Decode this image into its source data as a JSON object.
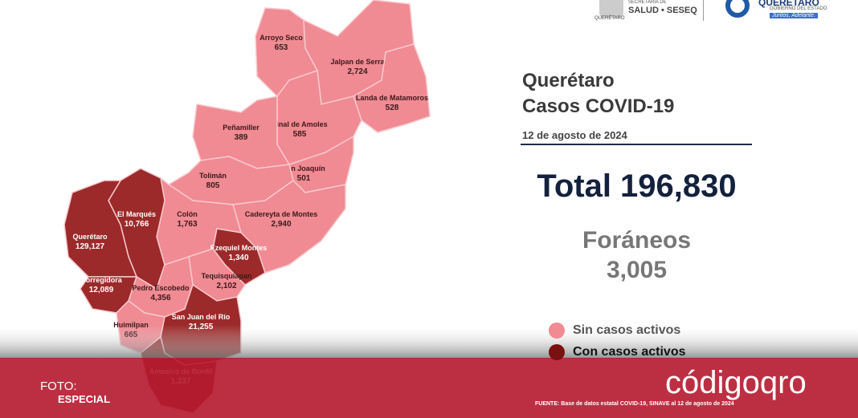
{
  "header": {
    "seal_caption": "QUERÉTARO",
    "agency_top": "SECRETARÍA DE",
    "agency": "SALUD • SESEQ",
    "state": "QUERÉTARO",
    "state_sub": "GOBIERNO DEL ESTADO",
    "slogan": "Juntos, Adelante."
  },
  "title": {
    "line1": "Querétaro",
    "line2": "Casos COVID-19",
    "date": "12 de agosto de 2024"
  },
  "total": "Total 196,830",
  "foreign": {
    "label": "Foráneos",
    "value": "3,005"
  },
  "legend": [
    {
      "label": "Sin casos activos",
      "color": "#f08a93"
    },
    {
      "label": "Con casos activos",
      "color": "#7a1010"
    }
  ],
  "municipalities": [
    {
      "name": "Arroyo Seco",
      "cases": "653",
      "color": "#f08a93"
    },
    {
      "name": "Jalpan de Serra",
      "cases": "2,724",
      "color": "#f08a93"
    },
    {
      "name": "Landa de Matamoros",
      "cases": "528",
      "color": "#f08a93"
    },
    {
      "name": "Pinal de Amoles",
      "cases": "585",
      "color": "#f08a93"
    },
    {
      "name": "Peñamiller",
      "cases": "389",
      "color": "#f08a93"
    },
    {
      "name": "San Joaquín",
      "cases": "501",
      "color": "#f08a93"
    },
    {
      "name": "Tolimán",
      "cases": "805",
      "color": "#f08a93"
    },
    {
      "name": "Cadereyta de Montes",
      "cases": "2,940",
      "color": "#f08a93"
    },
    {
      "name": "Colón",
      "cases": "1,763",
      "color": "#f08a93"
    },
    {
      "name": "El Marqués",
      "cases": "10,766",
      "color": "#9c2a2a"
    },
    {
      "name": "Querétaro",
      "cases": "129,127",
      "color": "#9c2a2a"
    },
    {
      "name": "Ezequiel Montes",
      "cases": "1,340",
      "color": "#9c2a2a"
    },
    {
      "name": "Corregidora",
      "cases": "12,089",
      "color": "#9c2a2a"
    },
    {
      "name": "Tequisquiapan",
      "cases": "2,102",
      "color": "#f08a93"
    },
    {
      "name": "Pedro Escobedo",
      "cases": "4,356",
      "color": "#f08a93"
    },
    {
      "name": "Huimilpan",
      "cases": "665",
      "color": "#f08a93"
    },
    {
      "name": "San Juan del Río",
      "cases": "21,255",
      "color": "#9c2a2a"
    },
    {
      "name": "Amealco de Bonfil",
      "cases": "1,237",
      "color": "#9c2a2a"
    }
  ],
  "footer": {
    "photo": "FOTO:",
    "photo_credit": "ESPECIAL",
    "brand": "códigoqro",
    "source": "FUENTE: Base de datos estatal COVID-19, SINAVE al 12 de agosto de 2024"
  }
}
